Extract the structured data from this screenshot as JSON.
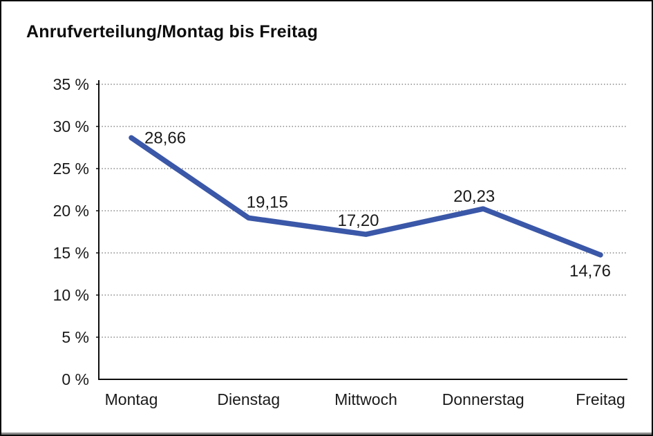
{
  "window": {
    "background": "#ffffff",
    "border_color": "#0a0a0a"
  },
  "chart_data": {
    "type": "line",
    "title": "Anrufverteilung/Montag bis Freitag",
    "categories": [
      "Montag",
      "Dienstag",
      "Mittwoch",
      "Donnerstag",
      "Freitag"
    ],
    "series": [
      {
        "name": "Anrufverteilung",
        "values": [
          28.66,
          19.15,
          17.2,
          20.23,
          14.76
        ],
        "point_labels": [
          "28,66",
          "19,15",
          "17,20",
          "20,23",
          "14,76"
        ],
        "color": "#3A57A8"
      }
    ],
    "xlabel": "",
    "ylabel": "",
    "ylim": [
      0,
      35
    ],
    "ytick_step": 5,
    "ytick_labels": [
      "0 %",
      "5 %",
      "10 %",
      "15 %",
      "20 %",
      "25 %",
      "30 %",
      "35 %"
    ],
    "grid": "horizontal-dotted",
    "gridline_color": "#6e6e6e",
    "axis_color": "#0d0d0d",
    "label_color": "#1a1a1a",
    "legend": "none"
  }
}
